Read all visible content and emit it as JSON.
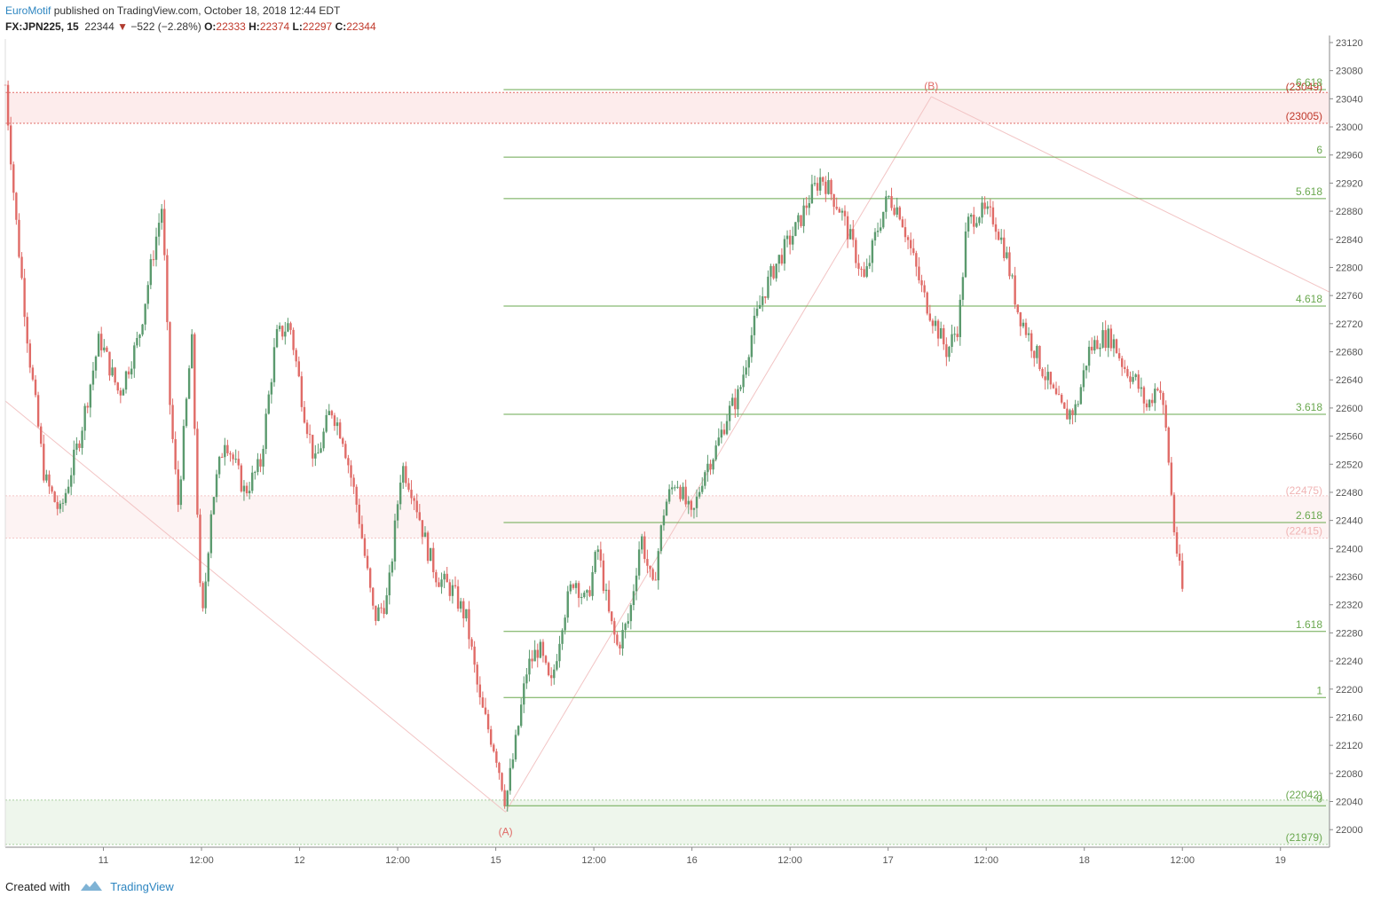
{
  "header": {
    "publisher": "EuroMotif",
    "published_text": " published on TradingView.com, October 18, 2018 12:44 EDT"
  },
  "symbol": {
    "ticker": "FX:JPN225, 15",
    "last": "22344",
    "arrow": "▼",
    "change": "−522 (−2.28%)",
    "open_label": "O:",
    "open": "22333",
    "high_label": "H:",
    "high": "22374",
    "low_label": "L:",
    "low": "22297",
    "close_label": "C:",
    "close": "22344"
  },
  "footer": {
    "created_with": "Created with",
    "brand": "TradingView"
  },
  "colors": {
    "up": "#5b9a6e",
    "down": "#e06b67",
    "fib": "#6aa84f",
    "zone_red": "#fdecec",
    "zone_red_line": "#e06b67",
    "zone_green": "#eef6ec",
    "zone_faint_pink": "#fdf3f3",
    "wave": "#f2c4c4",
    "axis_text": "#555555"
  },
  "chart_data": {
    "type": "candlestick",
    "ylim": [
      21975,
      23125
    ],
    "y_ticks": [
      22000,
      22040,
      22080,
      22120,
      22160,
      22200,
      22240,
      22280,
      22320,
      22360,
      22400,
      22440,
      22480,
      22520,
      22560,
      22600,
      22640,
      22680,
      22720,
      22760,
      22800,
      22840,
      22880,
      22920,
      22960,
      23000,
      23040,
      23080,
      23120
    ],
    "x_ticks": [
      {
        "label": "11",
        "t": 0.5
      },
      {
        "label": "12:00",
        "t": 1.0
      },
      {
        "label": "12",
        "t": 1.5
      },
      {
        "label": "12:00",
        "t": 2.0
      },
      {
        "label": "15",
        "t": 2.5
      },
      {
        "label": "12:00",
        "t": 3.0
      },
      {
        "label": "16",
        "t": 3.5
      },
      {
        "label": "12:00",
        "t": 4.0
      },
      {
        "label": "17",
        "t": 4.5
      },
      {
        "label": "12:00",
        "t": 5.0
      },
      {
        "label": "18",
        "t": 5.5
      },
      {
        "label": "12:00",
        "t": 6.0
      },
      {
        "label": "19",
        "t": 6.5
      }
    ],
    "x_range": [
      0.0,
      6.75
    ],
    "fib_levels": [
      {
        "label": "0",
        "value": 22034
      },
      {
        "label": "1",
        "value": 22188
      },
      {
        "label": "1.618",
        "value": 22282
      },
      {
        "label": "2.618",
        "value": 22437
      },
      {
        "label": "3.618",
        "value": 22591
      },
      {
        "label": "4.618",
        "value": 22745
      },
      {
        "label": "5.618",
        "value": 22898
      },
      {
        "label": "6",
        "value": 22957
      },
      {
        "label": "6.618",
        "value": 23053
      }
    ],
    "fib_start_t": 2.54,
    "zones": [
      {
        "top": 23049,
        "bottom": 23005,
        "top_label": "(23049)",
        "bottom_label": "(23005)",
        "kind": "red"
      },
      {
        "top": 22475,
        "bottom": 22415,
        "top_label": "(22475)",
        "bottom_label": "(22415)",
        "kind": "faint"
      },
      {
        "top": 22042,
        "bottom": 21979,
        "top_label": "(22042)",
        "bottom_label": "(21979)",
        "kind": "green"
      }
    ],
    "wave_points": [
      {
        "t": 0.0,
        "v": 22610,
        "label": ""
      },
      {
        "t": 2.55,
        "v": 22025,
        "label": "(A)"
      },
      {
        "t": 4.72,
        "v": 23043,
        "label": "(B)"
      },
      {
        "t": 6.75,
        "v": 22765,
        "label": ""
      }
    ],
    "price_path": [
      [
        0.0,
        23060
      ],
      [
        0.05,
        22880
      ],
      [
        0.12,
        22680
      ],
      [
        0.2,
        22500
      ],
      [
        0.28,
        22450
      ],
      [
        0.38,
        22560
      ],
      [
        0.48,
        22700
      ],
      [
        0.58,
        22620
      ],
      [
        0.68,
        22700
      ],
      [
        0.76,
        22830
      ],
      [
        0.8,
        22890
      ],
      [
        0.84,
        22600
      ],
      [
        0.88,
        22460
      ],
      [
        0.95,
        22700
      ],
      [
        1.0,
        22280
      ],
      [
        1.05,
        22460
      ],
      [
        1.12,
        22560
      ],
      [
        1.22,
        22480
      ],
      [
        1.3,
        22520
      ],
      [
        1.38,
        22700
      ],
      [
        1.45,
        22720
      ],
      [
        1.52,
        22600
      ],
      [
        1.58,
        22520
      ],
      [
        1.66,
        22600
      ],
      [
        1.72,
        22560
      ],
      [
        1.8,
        22450
      ],
      [
        1.88,
        22300
      ],
      [
        1.95,
        22330
      ],
      [
        2.02,
        22520
      ],
      [
        2.08,
        22480
      ],
      [
        2.15,
        22400
      ],
      [
        2.2,
        22360
      ],
      [
        2.28,
        22340
      ],
      [
        2.35,
        22300
      ],
      [
        2.42,
        22180
      ],
      [
        2.5,
        22110
      ],
      [
        2.55,
        22040
      ],
      [
        2.6,
        22120
      ],
      [
        2.66,
        22230
      ],
      [
        2.72,
        22260
      ],
      [
        2.78,
        22200
      ],
      [
        2.84,
        22300
      ],
      [
        2.9,
        22360
      ],
      [
        2.96,
        22320
      ],
      [
        3.02,
        22400
      ],
      [
        3.08,
        22300
      ],
      [
        3.12,
        22260
      ],
      [
        3.18,
        22300
      ],
      [
        3.24,
        22420
      ],
      [
        3.3,
        22340
      ],
      [
        3.36,
        22460
      ],
      [
        3.42,
        22500
      ],
      [
        3.5,
        22440
      ],
      [
        3.56,
        22510
      ],
      [
        3.62,
        22540
      ],
      [
        3.68,
        22590
      ],
      [
        3.74,
        22620
      ],
      [
        3.8,
        22700
      ],
      [
        3.86,
        22760
      ],
      [
        3.92,
        22800
      ],
      [
        3.98,
        22830
      ],
      [
        4.04,
        22860
      ],
      [
        4.1,
        22900
      ],
      [
        4.16,
        22930
      ],
      [
        4.2,
        22910
      ],
      [
        4.26,
        22880
      ],
      [
        4.32,
        22830
      ],
      [
        4.38,
        22780
      ],
      [
        4.44,
        22850
      ],
      [
        4.5,
        22900
      ],
      [
        4.56,
        22880
      ],
      [
        4.62,
        22820
      ],
      [
        4.68,
        22760
      ],
      [
        4.74,
        22720
      ],
      [
        4.8,
        22680
      ],
      [
        4.86,
        22720
      ],
      [
        4.9,
        22860
      ],
      [
        4.96,
        22880
      ],
      [
        5.04,
        22870
      ],
      [
        5.1,
        22820
      ],
      [
        5.16,
        22740
      ],
      [
        5.22,
        22700
      ],
      [
        5.28,
        22660
      ],
      [
        5.34,
        22620
      ],
      [
        5.4,
        22590
      ],
      [
        5.46,
        22600
      ],
      [
        5.52,
        22680
      ],
      [
        5.58,
        22700
      ],
      [
        5.64,
        22700
      ],
      [
        5.7,
        22660
      ],
      [
        5.76,
        22640
      ],
      [
        5.82,
        22600
      ],
      [
        5.88,
        22640
      ],
      [
        5.92,
        22560
      ],
      [
        5.96,
        22420
      ],
      [
        6.0,
        22340
      ]
    ]
  }
}
